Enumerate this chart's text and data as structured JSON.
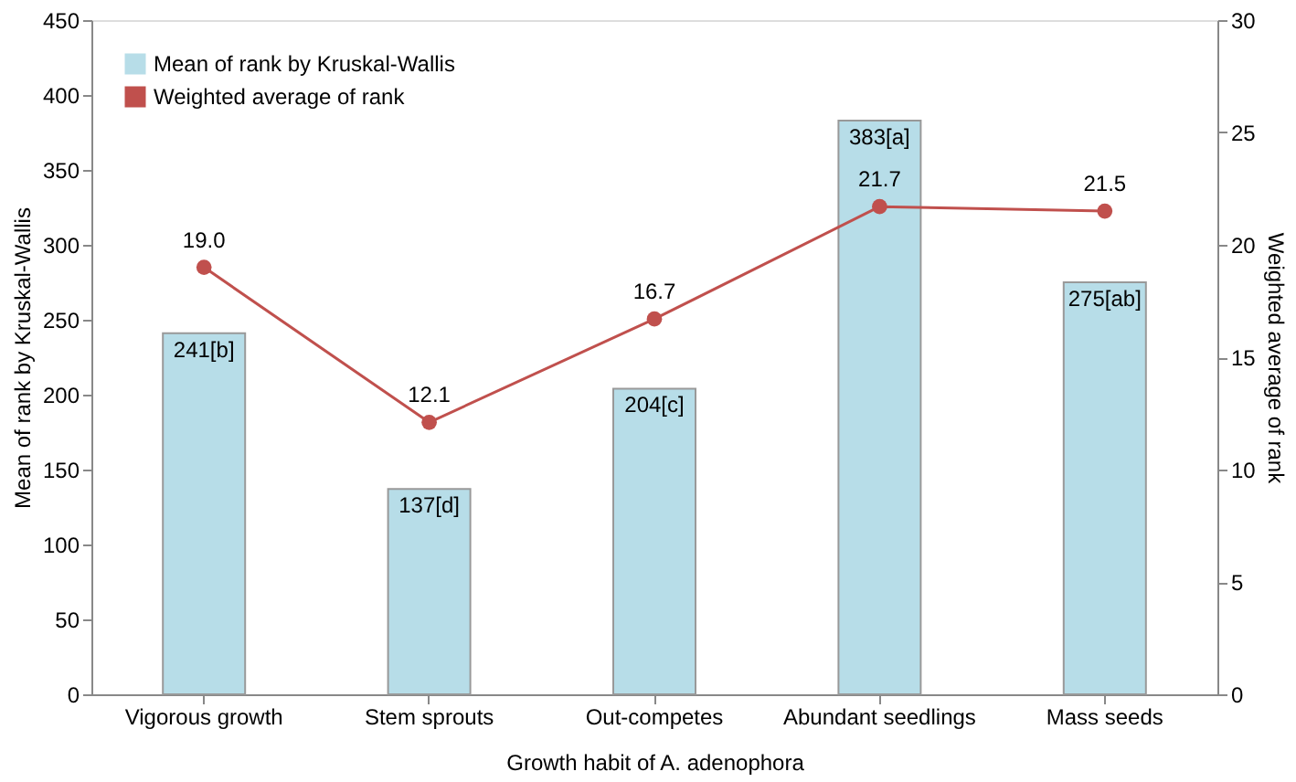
{
  "chart_data": {
    "type": "bar",
    "xlabel": "Growth habit of A. adenophora",
    "ylabel": "Mean of rank by Kruskal-Wallis",
    "y2label": "Weighted average of rank",
    "categories": [
      "Vigorous growth",
      "Stem sprouts",
      "Out-competes",
      "Abundant seedlings",
      "Mass seeds"
    ],
    "series": [
      {
        "name": "Mean of rank by Kruskal-Wallis",
        "color": "#b7dde8",
        "values": [
          241,
          137,
          204,
          383,
          275
        ],
        "value_labels": [
          "241[b]",
          "137[d]",
          "204[c]",
          "383[a]",
          "275[ab]"
        ]
      },
      {
        "name": "Weighted average of rank",
        "type": "line",
        "axis": "y2",
        "color": "#c0504d",
        "values": [
          19.0,
          12.1,
          16.7,
          21.7,
          21.5
        ],
        "value_labels": [
          "19.0",
          "12.1",
          "16.7",
          "21.7",
          "21.5"
        ]
      }
    ],
    "ylim": [
      0,
      450
    ],
    "yticks": [
      0,
      50,
      100,
      150,
      200,
      250,
      300,
      350,
      400,
      450
    ],
    "y2lim": [
      0,
      30
    ],
    "y2ticks": [
      0,
      5,
      10,
      15,
      20,
      25,
      30
    ],
    "legend": "top left",
    "marker": "circle",
    "line_style": "solid"
  }
}
